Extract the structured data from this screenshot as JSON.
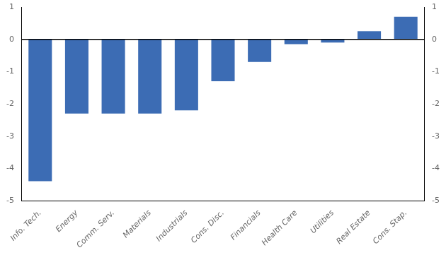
{
  "chart_data": {
    "type": "bar",
    "categories": [
      "Info. Tech.",
      "Energy",
      "Comm. Serv.",
      "Materials",
      "Industrials",
      "Cons. Disc.",
      "Financials",
      "Health Care",
      "Utilities",
      "Real Estate",
      "Cons. Stap."
    ],
    "values": [
      -4.4,
      -2.3,
      -2.3,
      -2.3,
      -2.2,
      -1.3,
      -0.7,
      -0.15,
      -0.1,
      0.25,
      0.7
    ],
    "color": "#3C6CB4",
    "ylim": [
      -5,
      1
    ],
    "yticks": [
      -5,
      -4,
      -3,
      -2,
      -1,
      0,
      1
    ],
    "y2lim": [
      -5,
      1
    ],
    "y2ticks": [
      -5,
      -4,
      -3,
      -2,
      -1,
      0,
      1
    ],
    "grid": false
  }
}
